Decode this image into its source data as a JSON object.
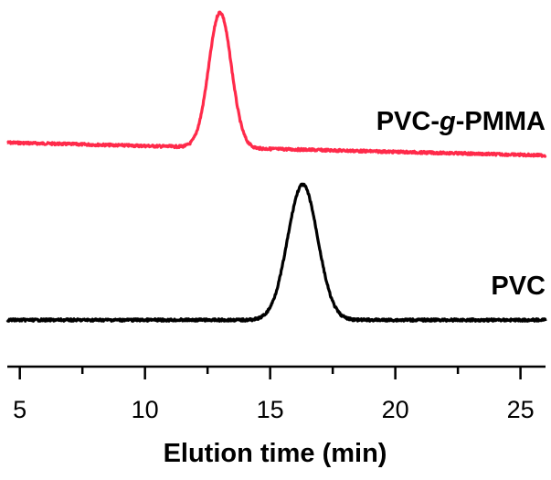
{
  "chart_data": {
    "type": "line",
    "xlabel": "Elution time (min)",
    "ylabel": "",
    "title": "",
    "xlim": [
      4.5,
      26
    ],
    "xticks_major": [
      5,
      10,
      15,
      20,
      25
    ],
    "xticks_minor": [
      7.5,
      12.5,
      17.5,
      22.5
    ],
    "y_axis_visible": false,
    "grid": false,
    "legend": "none",
    "series": [
      {
        "name": "PVC-g-PMMA",
        "label_prefix": "PVC-",
        "label_italic": "g",
        "label_suffix": "-PMMA",
        "color": "#ff2a4a",
        "baseline": 0.0,
        "peak_center": 13.0,
        "peak_sigma": 0.45,
        "peak_height": 1.0,
        "points": [
          [
            4.5,
            0.0
          ],
          [
            11.5,
            0.0
          ],
          [
            12.0,
            0.03
          ],
          [
            12.3,
            0.15
          ],
          [
            12.6,
            0.55
          ],
          [
            12.85,
            0.95
          ],
          [
            13.0,
            1.0
          ],
          [
            13.2,
            0.92
          ],
          [
            13.5,
            0.6
          ],
          [
            13.8,
            0.25
          ],
          [
            14.1,
            0.06
          ],
          [
            14.5,
            0.0
          ],
          [
            26,
            -0.08
          ]
        ]
      },
      {
        "name": "PVC",
        "color": "#000000",
        "baseline": 0.0,
        "peak_center": 16.3,
        "peak_sigma": 0.6,
        "peak_height": 1.0,
        "points": [
          [
            4.5,
            0.0
          ],
          [
            14.5,
            0.0
          ],
          [
            15.0,
            0.05
          ],
          [
            15.5,
            0.3
          ],
          [
            15.9,
            0.8
          ],
          [
            16.2,
            0.98
          ],
          [
            16.4,
            1.0
          ],
          [
            16.7,
            0.9
          ],
          [
            17.0,
            0.7
          ],
          [
            17.3,
            0.4
          ],
          [
            17.7,
            0.1
          ],
          [
            18.2,
            0.01
          ],
          [
            26,
            0.0
          ]
        ]
      }
    ]
  }
}
